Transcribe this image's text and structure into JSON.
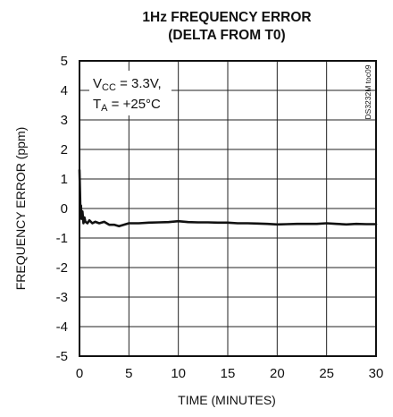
{
  "chart_data": {
    "type": "line",
    "title": [
      "1Hz FREQUENCY ERROR",
      "(DELTA FROM T0)"
    ],
    "xlabel": "TIME (MINUTES)",
    "ylabel": "FREQUENCY ERROR (ppm)",
    "xlim": [
      0,
      30
    ],
    "ylim": [
      -5,
      5
    ],
    "xticks": [
      0,
      5,
      10,
      15,
      20,
      25,
      30
    ],
    "yticks": [
      5,
      4,
      3,
      2,
      1,
      0,
      -1,
      -2,
      -3,
      -4,
      -5
    ],
    "grid": true,
    "annotation": {
      "vcc": {
        "base": "V",
        "sub": "CC",
        "rest": " = 3.3V,"
      },
      "ta": {
        "base": "T",
        "sub": "A",
        "rest": " = +25°C"
      }
    },
    "side_label": "DS3232M toc09",
    "line_color": "#111111",
    "series": [
      {
        "x": [
          0,
          0.05,
          0.1,
          0.15,
          0.2,
          0.3,
          0.4,
          0.5,
          0.6,
          0.8,
          1.0,
          1.3,
          1.6,
          2.0,
          2.5,
          3.0,
          3.5,
          4.0,
          5.0,
          6.0,
          7.0,
          8.0,
          9.0,
          10.0,
          11.0,
          12.0,
          13.0,
          14.0,
          15.0,
          16.0,
          17.0,
          18.0,
          19.0,
          20.0,
          21.0,
          22.0,
          23.0,
          24.0,
          25.0,
          26.0,
          27.0,
          28.0,
          29.0,
          30.0
        ],
        "y": [
          1.3,
          0.6,
          -0.2,
          0.1,
          -0.35,
          -0.1,
          -0.5,
          -0.3,
          -0.45,
          -0.5,
          -0.4,
          -0.5,
          -0.45,
          -0.5,
          -0.45,
          -0.55,
          -0.55,
          -0.6,
          -0.5,
          -0.5,
          -0.48,
          -0.47,
          -0.46,
          -0.43,
          -0.46,
          -0.47,
          -0.47,
          -0.48,
          -0.48,
          -0.5,
          -0.5,
          -0.51,
          -0.52,
          -0.54,
          -0.53,
          -0.52,
          -0.52,
          -0.52,
          -0.5,
          -0.52,
          -0.54,
          -0.52,
          -0.53,
          -0.53
        ]
      }
    ]
  }
}
